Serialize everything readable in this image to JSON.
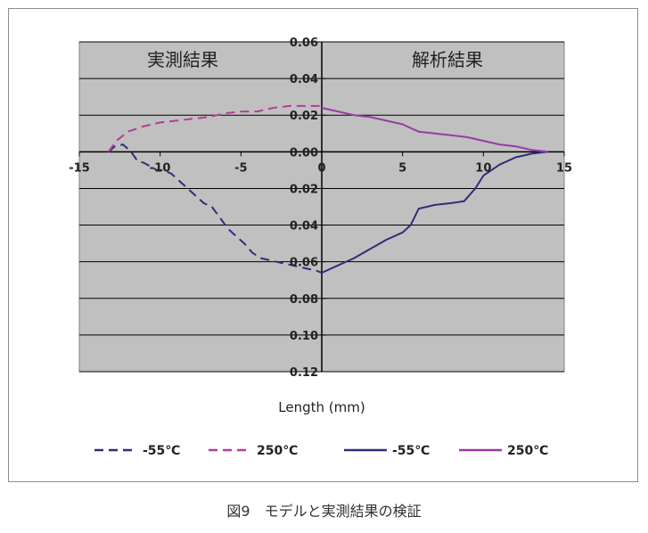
{
  "caption": "図9　モデルと実測結果の検証",
  "chart_data": {
    "type": "line",
    "xlabel": "Length (mm)",
    "ylabel": "",
    "xlim": [
      -15,
      15
    ],
    "ylim": [
      -0.12,
      0.06
    ],
    "x_ticks": [
      -15,
      -10,
      -5,
      0,
      5,
      10,
      15
    ],
    "x_tick_labels": [
      "-15",
      "-10",
      "-5",
      "0",
      "5",
      "10",
      "15"
    ],
    "y_ticks": [
      0.06,
      0.04,
      0.02,
      0,
      -0.02,
      -0.04,
      -0.06,
      -0.08,
      -0.1,
      -0.12
    ],
    "y_tick_labels": [
      "0.06",
      "0.04",
      "0.02",
      "0.00",
      "0.02",
      "0.04",
      "0.06",
      "0.08",
      "0.10",
      "0.12"
    ],
    "grid": "horizontal",
    "plot_background": "#c0c0c0",
    "region_labels": {
      "left": "実測結果",
      "right": "解析結果"
    },
    "legend_position": "bottom",
    "series": [
      {
        "name": "-55℃",
        "style": "dashed",
        "color": "#2e2e7a",
        "x": [
          -13.2,
          -12.8,
          -12.3,
          -11.8,
          -11.4,
          -11.0,
          -10.6,
          -10.2,
          -9.8,
          -9.3,
          -8.8,
          -8.3,
          -7.8,
          -7.3,
          -6.8,
          -6.3,
          -5.8,
          -5.3,
          -4.8,
          -4.3,
          -3.8,
          -3.3,
          -2.8,
          -2.3,
          -1.8,
          -1.3,
          -0.8,
          -0.3,
          0
        ],
        "y": [
          0.0,
          0.003,
          0.004,
          0.0,
          -0.005,
          -0.006,
          -0.008,
          -0.01,
          -0.01,
          -0.012,
          -0.016,
          -0.02,
          -0.024,
          -0.028,
          -0.03,
          -0.036,
          -0.042,
          -0.046,
          -0.05,
          -0.055,
          -0.058,
          -0.059,
          -0.06,
          -0.061,
          -0.062,
          -0.063,
          -0.064,
          -0.065,
          -0.066
        ]
      },
      {
        "name": "250℃",
        "style": "dashed",
        "color": "#b43c9a",
        "x": [
          -13.2,
          -12.7,
          -12.0,
          -11.0,
          -10.0,
          -9.0,
          -8.0,
          -7.0,
          -6.0,
          -5.0,
          -4.0,
          -3.0,
          -2.0,
          -1.0,
          0
        ],
        "y": [
          0.0,
          0.006,
          0.011,
          0.014,
          0.016,
          0.017,
          0.018,
          0.019,
          0.021,
          0.022,
          0.022,
          0.024,
          0.025,
          0.025,
          0.025
        ]
      },
      {
        "name": "-55℃",
        "style": "solid",
        "color": "#2e2e7a",
        "x": [
          0,
          1,
          2,
          3,
          4,
          5,
          5.5,
          6,
          7,
          8,
          8.8,
          9.5,
          10,
          11,
          12,
          13,
          14
        ],
        "y": [
          -0.066,
          -0.062,
          -0.058,
          -0.053,
          -0.048,
          -0.044,
          -0.04,
          -0.031,
          -0.029,
          -0.028,
          -0.027,
          -0.02,
          -0.013,
          -0.007,
          -0.003,
          -0.001,
          0.0
        ]
      },
      {
        "name": "250℃",
        "style": "solid",
        "color": "#9a3aa6",
        "x": [
          0,
          1,
          2,
          3,
          4,
          5,
          5.5,
          6,
          7,
          8,
          9,
          10,
          11,
          12,
          13,
          14
        ],
        "y": [
          0.024,
          0.022,
          0.02,
          0.019,
          0.017,
          0.015,
          0.013,
          0.011,
          0.01,
          0.009,
          0.008,
          0.006,
          0.004,
          0.003,
          0.001,
          0.0
        ]
      }
    ]
  }
}
